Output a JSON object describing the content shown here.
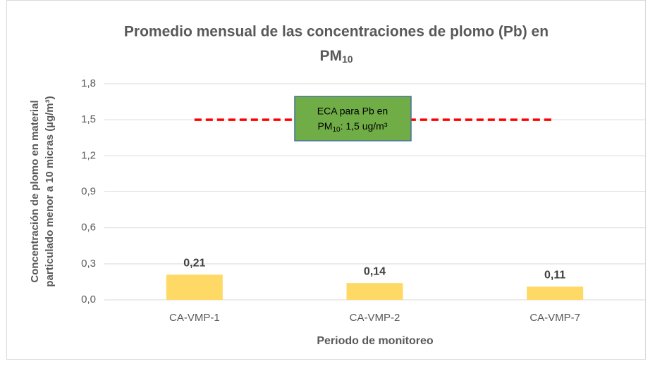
{
  "chart_data": {
    "type": "bar",
    "title": {
      "line1": "Promedio mensual de las concentraciones de plomo (Pb) en",
      "line2": "PM",
      "line2_sub": "10"
    },
    "ylabel": [
      "Concentración de plomo en material",
      "particulado menor a 10 micras (µg/m³)"
    ],
    "xlabel": "Periodo de monitoreo",
    "categories": [
      "CA-VMP-1",
      "CA-VMP-2",
      "CA-VMP-7"
    ],
    "values": [
      0.21,
      0.14,
      0.11
    ],
    "value_labels": [
      "0,21",
      "0,14",
      "0,11"
    ],
    "color": "#ffd966",
    "ylim": [
      0,
      1.8
    ],
    "yticks": [
      {
        "value": 0,
        "label": "0,0"
      },
      {
        "value": 0.3,
        "label": "0,3"
      },
      {
        "value": 0.6,
        "label": "0,6"
      },
      {
        "value": 0.9,
        "label": "0,9"
      },
      {
        "value": 1.2,
        "label": "1,2"
      },
      {
        "value": 1.5,
        "label": "1,5"
      },
      {
        "value": 1.8,
        "label": "1,8"
      }
    ],
    "grid": true,
    "reference_line": {
      "value": 1.5,
      "color": "#ff0000"
    },
    "annotation": {
      "line1": "ECA para Pb en",
      "line2": "PM",
      "line2_sub": "10",
      "line2_rest": ": 1,5 ug/m³",
      "color": "#70ad47"
    }
  }
}
